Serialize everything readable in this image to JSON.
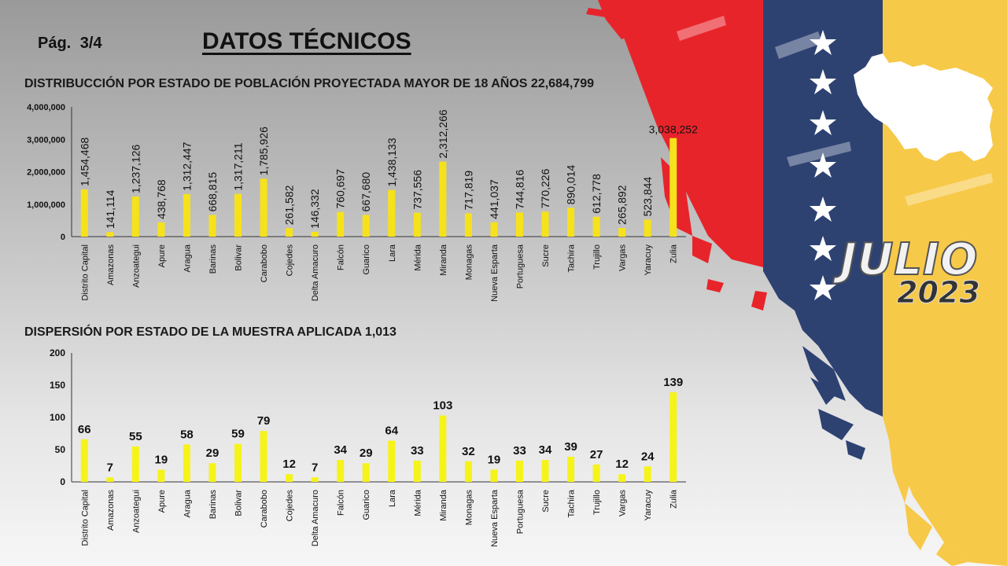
{
  "header": {
    "page": "Pág.  3/4",
    "title": "DATOS TÉCNICOS"
  },
  "decor": {
    "month": "JULIO",
    "year": "2023",
    "flag_colors": {
      "yellow": "#f7c948",
      "blue": "#2e4272",
      "red": "#e8242b"
    }
  },
  "chart_data": [
    {
      "type": "bar",
      "title": "DISTRIBUCCIÓN POR ESTADO DE POBLACIÓN PROYECTADA MAYOR DE 18 AÑOS 22,684,799",
      "categories": [
        "Distrito Capital",
        "Amazonas",
        "Anzoategui",
        "Apure",
        "Aragua",
        "Barinas",
        "Bolivar",
        "Carabobo",
        "Cojedes",
        "Delta Amacuro",
        "Falcón",
        "Guarico",
        "Lara",
        "Mérida",
        "Miranda",
        "Monagas",
        "Nueva Esparta",
        "Portuguesa",
        "Sucre",
        "Tachira",
        "Trujillo",
        "Vargas",
        "Yaracuy",
        "Zulia"
      ],
      "values": [
        1454468,
        141114,
        1237126,
        438768,
        1312447,
        668815,
        1317211,
        1785926,
        261582,
        146332,
        760697,
        667680,
        1438133,
        737556,
        2312266,
        717819,
        441037,
        744816,
        770226,
        890014,
        612778,
        265892,
        523844,
        3038252
      ],
      "labels": [
        "1,454,468",
        "141,114",
        "1,237,126",
        "438,768",
        "1,312,447",
        "668,815",
        "1,317,211",
        "1,785,926",
        "261,582",
        "146,332",
        "760,697",
        "667,680",
        "1,438,133",
        "737,556",
        "2,312,266",
        "717,819",
        "441,037",
        "744,816",
        "770,226",
        "890,014",
        "612,778",
        "265,892",
        "523,844",
        "3,038,252"
      ],
      "ylim": [
        0,
        4000000
      ],
      "yticks": [
        "0",
        "1,000,000",
        "2,000,000",
        "3,000,000",
        "4,000,000"
      ],
      "bar_color": "#f6e21a",
      "grid": false
    },
    {
      "type": "bar",
      "title": "DISPERSIÓN POR ESTADO DE LA MUESTRA APLICADA 1,013",
      "categories": [
        "Distrito Capital",
        "Amazonas",
        "Anzoategui",
        "Apure",
        "Aragua",
        "Barinas",
        "Bolivar",
        "Carabobo",
        "Cojedes",
        "Delta Amacuro",
        "Falcón",
        "Guarico",
        "Lara",
        "Mérida",
        "Miranda",
        "Monagas",
        "Nueva Esparta",
        "Portuguesa",
        "Sucre",
        "Tachira",
        "Trujillo",
        "Vargas",
        "Yaracuy",
        "Zulia"
      ],
      "values": [
        66,
        7,
        55,
        19,
        58,
        29,
        59,
        79,
        12,
        7,
        34,
        29,
        64,
        33,
        103,
        32,
        19,
        33,
        34,
        39,
        27,
        12,
        24,
        139
      ],
      "labels": [
        "66",
        "7",
        "55",
        "19",
        "58",
        "29",
        "59",
        "79",
        "12",
        "7",
        "34",
        "29",
        "64",
        "33",
        "103",
        "32",
        "19",
        "33",
        "34",
        "39",
        "27",
        "12",
        "24",
        "139"
      ],
      "ylim": [
        0,
        200
      ],
      "yticks": [
        "0",
        "50",
        "100",
        "150",
        "200"
      ],
      "bar_color": "#f6f31a",
      "grid": false
    }
  ]
}
